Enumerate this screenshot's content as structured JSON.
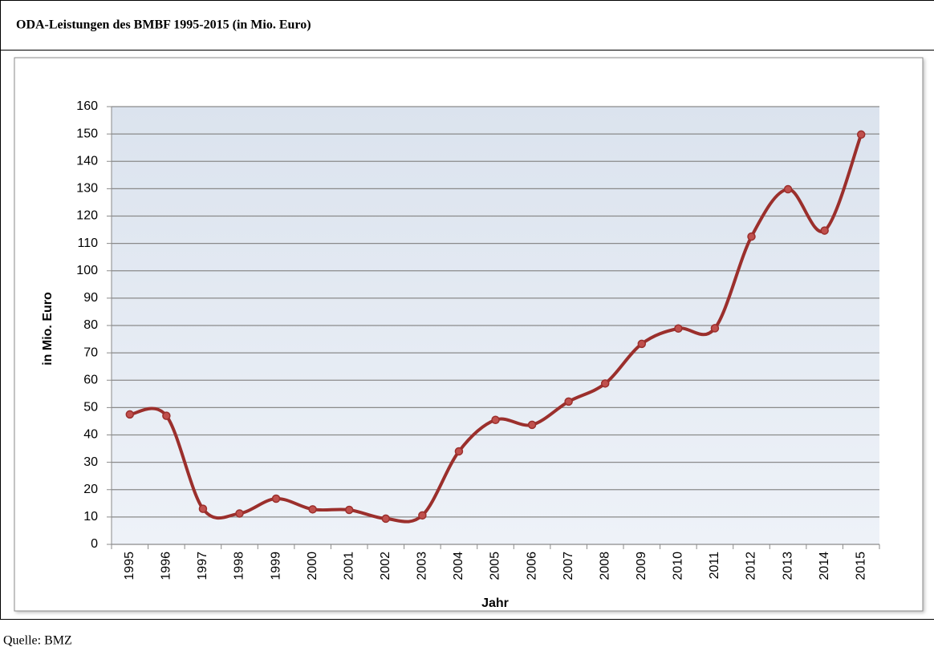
{
  "chart_data": {
    "type": "line",
    "title": "ODA-Leistungen des BMBF 1995-2015 (in Mio. Euro)",
    "source": "Quelle: BMZ",
    "y_label": "in Mio. Euro",
    "x_label": "Jahr",
    "categories": [
      "1995",
      "1996",
      "1997",
      "1998",
      "1999",
      "2000",
      "2001",
      "2002",
      "2003",
      "2004",
      "2005",
      "2006",
      "2007",
      "2008",
      "2009",
      "2010",
      "2011",
      "2012",
      "2013",
      "2014",
      "2015"
    ],
    "series": [
      {
        "color": "#9b2f2c",
        "values": [
          47.5,
          47,
          13,
          11.3,
          16.7,
          12.8,
          12.6,
          9.4,
          10.6,
          34,
          45.5,
          43.7,
          52.2,
          58.8,
          73.3,
          78.9,
          79,
          112.5,
          129.8,
          114.7,
          149.8
        ]
      }
    ],
    "ylim": [
      0,
      160
    ],
    "yticks": [
      0,
      10,
      20,
      30,
      40,
      50,
      60,
      70,
      80,
      90,
      100,
      110,
      120,
      130,
      140,
      150,
      160
    ],
    "grid": true,
    "smooth": true
  }
}
